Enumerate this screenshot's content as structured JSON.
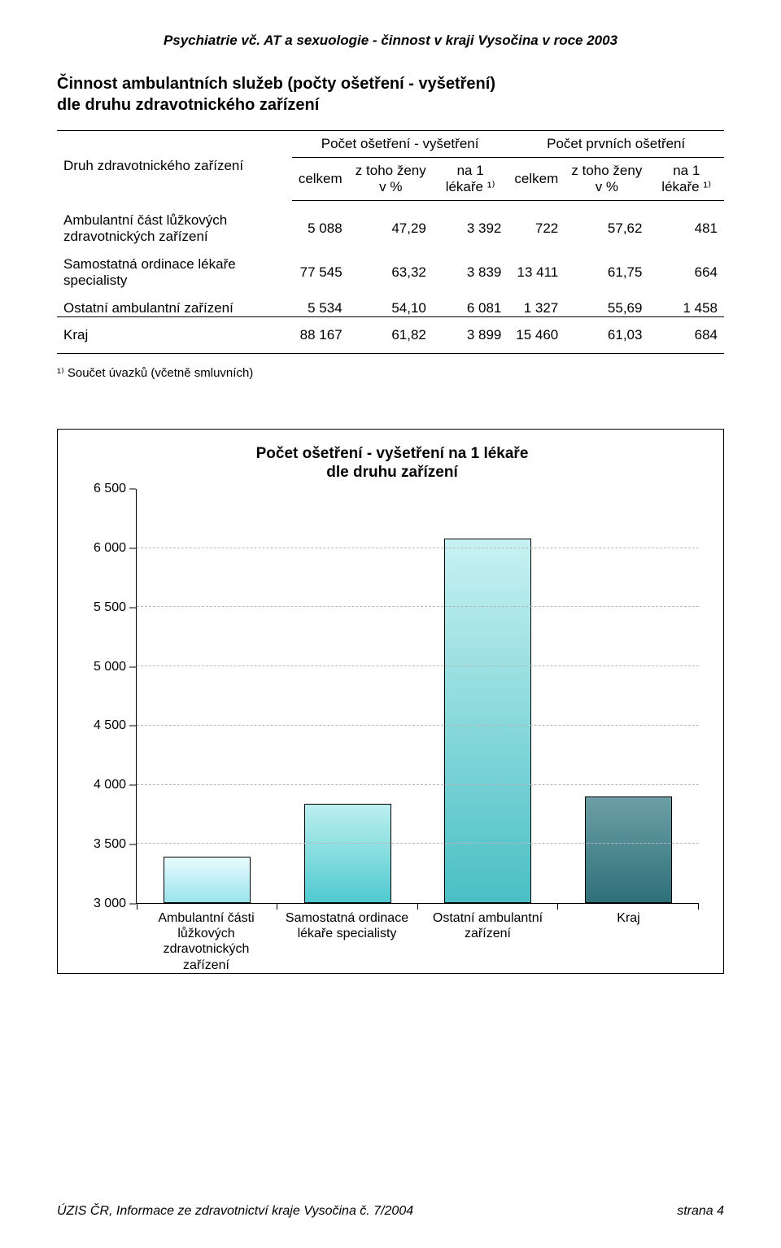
{
  "doc_header": "Psychiatrie vč. AT a sexuologie - činnost v kraji Vysočina v roce 2003",
  "section_title_line1": "Činnost ambulantních služeb (počty ošetření - vyšetření)",
  "section_title_line2": "dle druhu zdravotnického zařízení",
  "table": {
    "stub_header": "Druh zdravotnického zařízení",
    "group_headers": [
      "Počet ošetření - vyšetření",
      "Počet prvních ošetření"
    ],
    "sub_headers": [
      "celkem",
      "z toho ženy v %",
      "na 1 lékaře ¹⁾",
      "celkem",
      "z toho ženy v %",
      "na 1 lékaře ¹⁾"
    ],
    "rows": [
      {
        "label": "Ambulantní část lůžkových zdravotnických zařízení",
        "cells": [
          "5 088",
          "47,29",
          "3 392",
          "722",
          "57,62",
          "481"
        ]
      },
      {
        "label": "Samostatná ordinace lékaře specialisty",
        "cells": [
          "77 545",
          "63,32",
          "3 839",
          "13 411",
          "61,75",
          "664"
        ]
      },
      {
        "label": "Ostatní ambulantní zařízení",
        "cells": [
          "5 534",
          "54,10",
          "6 081",
          "1 327",
          "55,69",
          "1 458"
        ]
      }
    ],
    "total": {
      "label": "Kraj",
      "cells": [
        "88 167",
        "61,82",
        "3 899",
        "15 460",
        "61,03",
        "684"
      ]
    }
  },
  "footnote": "¹⁾ Součet úvazků (včetně smluvních)",
  "chart": {
    "type": "bar",
    "title_line1": "Počet ošetření - vyšetření na 1 lékaře",
    "title_line2": "dle druhu zařízení",
    "y_min": 3000,
    "y_max": 6500,
    "y_ticks": [
      3000,
      3500,
      4000,
      4500,
      5000,
      5500,
      6000,
      6500
    ],
    "y_tick_labels": [
      "3 000",
      "3 500",
      "4 000",
      "4 500",
      "5 000",
      "5 500",
      "6 000",
      "6 500"
    ],
    "categories": [
      "Ambulantní části lůžkových zdravotnických zařízení",
      "Samostatná ordinace lékaře specialisty",
      "Ostatní ambulantní zařízení",
      "Kraj"
    ],
    "values": [
      3392,
      3839,
      6081,
      3899
    ],
    "bar_gradients": [
      {
        "top": "#e8fbfd",
        "bottom": "#9be4ee"
      },
      {
        "top": "#bcf0ef",
        "bottom": "#4fc9cf"
      },
      {
        "top": "#c8f2f3",
        "bottom": "#4abfc4"
      },
      {
        "top": "#6d9fa6",
        "bottom": "#2e7079"
      }
    ],
    "grid_color": "#b7b7b7",
    "axis_color": "#000000",
    "background_color": "#ffffff",
    "font_size_title": 19,
    "font_size_axis": 16,
    "bar_border_color": "#000000",
    "bar_width_ratio": 0.62
  },
  "footer_left": "ÚZIS ČR, Informace ze zdravotnictví kraje Vysočina č. 7/2004",
  "footer_right": "strana 4"
}
